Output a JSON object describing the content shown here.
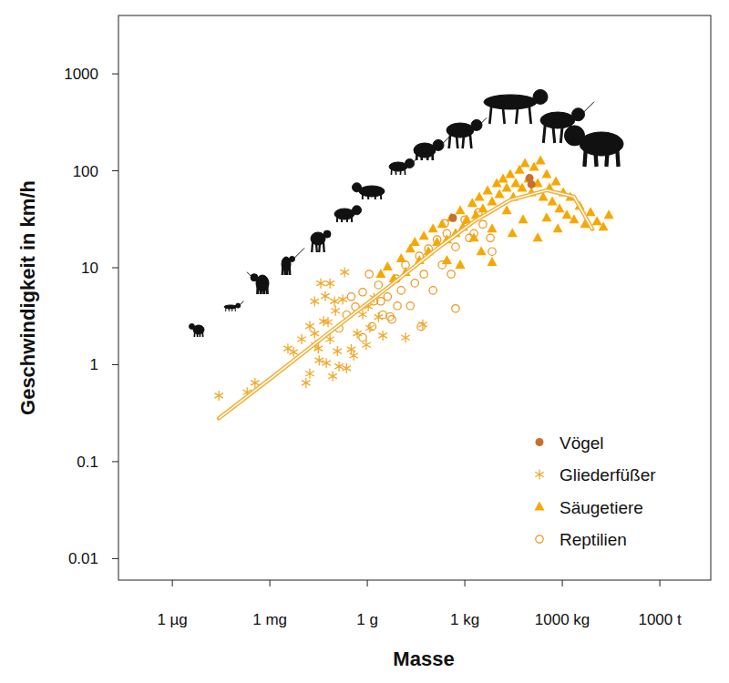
{
  "chart_data": {
    "type": "scatter",
    "x_label": "Masse",
    "y_label": "Geschwindigkeit in km/h",
    "log": true,
    "legend": "bottom-right",
    "xlim": [
      2.2e-11,
      37000000.0
    ],
    "ylim": [
      0.006,
      4000
    ],
    "xticks": [
      {
        "value": 1e-09,
        "label": "1 µg"
      },
      {
        "value": 1e-06,
        "label": "1 mg"
      },
      {
        "value": 0.001,
        "label": "1 g"
      },
      {
        "value": 1,
        "label": "1 kg"
      },
      {
        "value": 1000,
        "label": "1000 kg"
      },
      {
        "value": 1000000,
        "label": "1000 t"
      }
    ],
    "yticks": [
      0.01,
      0.1,
      1,
      10,
      100,
      1000
    ],
    "series": [
      {
        "name": "Vögel",
        "color": "#c8702a",
        "marker": "circle",
        "x": [
          0.43,
          98,
          112
        ],
        "values": [
          32.7,
          84,
          72.5
        ]
      },
      {
        "name": "Gliederfüßer",
        "color": "#f2a92b",
        "marker": "asterisk",
        "x": [
          2.7e-08,
          2e-07,
          3.5e-07,
          3.6e-06,
          5.4e-06,
          9.5e-06,
          1.7e-05,
          2.4e-05,
          3.7e-05,
          5.1e-05,
          7.1e-05,
          9.8e-05,
          0.000135,
          8.6e-05,
          3.3e-05,
          2.5e-05,
          4.5e-05,
          6.2e-05,
          0.000105,
          0.000175,
          0.00023,
          0.00032,
          0.00049,
          0.00072,
          0.00107,
          0.0012,
          0.0016,
          0.0022,
          0.0002,
          0.00012,
          5.5e-05,
          1.7e-05,
          1.3e-05,
          3.1e-05,
          0.00038,
          0.003,
          0.00093,
          2.4e-05,
          7.1e-05,
          0.051,
          0.015
        ],
        "values": [
          0.48,
          0.52,
          0.65,
          1.47,
          1.35,
          1.83,
          2.5,
          2.1,
          6.9,
          5.1,
          6.9,
          4.5,
          0.96,
          0.76,
          1.11,
          1.6,
          2.8,
          2.75,
          3.6,
          4.7,
          0.92,
          1.44,
          2.1,
          3.3,
          4.0,
          2.4,
          4.9,
          3.1,
          9.0,
          1.38,
          1.04,
          0.81,
          0.65,
          1.47,
          1.24,
          2.0,
          1.6,
          4.5,
          1.83,
          2.6,
          1.9
        ]
      },
      {
        "name": "Säugetiere",
        "color": "#f7a800",
        "marker": "triangle",
        "x": [
          0.0026,
          0.0042,
          0.0065,
          0.011,
          0.015,
          0.021,
          0.029,
          0.04,
          0.055,
          0.076,
          0.105,
          0.14,
          0.2,
          0.28,
          0.38,
          0.52,
          0.72,
          0.88,
          1.14,
          1.7,
          2.2,
          2.8,
          3.6,
          5.0,
          6.9,
          9.6,
          11.6,
          15,
          19.5,
          25,
          31,
          37,
          48,
          58,
          71,
          91,
          112,
          135,
          175,
          213,
          258,
          330,
          405,
          490,
          635,
          820,
          1070,
          1380,
          1780,
          2300,
          3400,
          5000,
          7400,
          11700,
          18300,
          27000,
          19.5,
          6.9,
          3.2,
          330,
          725,
          62,
          29,
          0.72,
          0.28,
          1.9,
          175,
          6.9
        ],
        "values": [
          8.6,
          10.2,
          7.7,
          12.4,
          9.0,
          15.7,
          18.3,
          11.9,
          21.2,
          14.7,
          25.2,
          18.3,
          28.1,
          19.5,
          32.7,
          22.6,
          38.8,
          26.4,
          31.3,
          46.1,
          34.8,
          53.6,
          40.5,
          62.3,
          48.1,
          74,
          57.1,
          82.4,
          66.4,
          91.8,
          53.6,
          74,
          102,
          66.4,
          119,
          82.4,
          59.7,
          109,
          74,
          127,
          53.6,
          91.8,
          66.4,
          48.1,
          77.2,
          40.5,
          59.7,
          34.8,
          53.6,
          31.3,
          43.2,
          28.1,
          37.2,
          30,
          26.4,
          34.8,
          38.8,
          25.2,
          14.7,
          32.7,
          25.2,
          31.3,
          22.6,
          10.7,
          11.9,
          20.3,
          20.3,
          11.4
        ]
      },
      {
        "name": "Reptilien",
        "color": "#e8961e",
        "marker": "open-circle",
        "x": [
          0.000135,
          0.00023,
          0.00043,
          0.00072,
          0.00114,
          0.0016,
          0.0022,
          0.003,
          0.0042,
          0.0057,
          0.0079,
          0.011,
          0.015,
          0.021,
          0.029,
          0.04,
          0.055,
          0.076,
          0.105,
          0.14,
          0.2,
          0.28,
          0.38,
          0.52,
          1,
          1.9,
          3.6,
          6.9,
          0.005,
          0.045,
          0.00072,
          0.0014,
          0.00032,
          0.0026,
          0.0084,
          0.52,
          0.24,
          1.38,
          2.6,
          6.1
        ],
        "values": [
          2.37,
          3.27,
          3.96,
          5.6,
          8.6,
          4.51,
          6.64,
          3.27,
          5.02,
          2.93,
          7.7,
          5.84,
          10.7,
          4.05,
          6.94,
          13.2,
          8.6,
          15.7,
          5.84,
          19.5,
          10.7,
          22.6,
          8.6,
          16.4,
          31.3,
          22.6,
          28.1,
          14.7,
          3.13,
          2.47,
          1.91,
          2.47,
          5.02,
          4.51,
          4.05,
          3.8,
          28.7,
          20.3,
          37.2,
          20.3
        ]
      },
      {
        "type": "line",
        "color": "#f2b23a",
        "x": [
          2.7e-08,
          1.3e-06,
          6.2e-05,
          0.003,
          0.14,
          1.9,
          25,
          330,
          2300,
          8400
        ],
        "values": [
          0.28,
          0.76,
          2.1,
          5.7,
          15.7,
          30,
          50,
          63,
          54,
          25
        ]
      }
    ]
  }
}
